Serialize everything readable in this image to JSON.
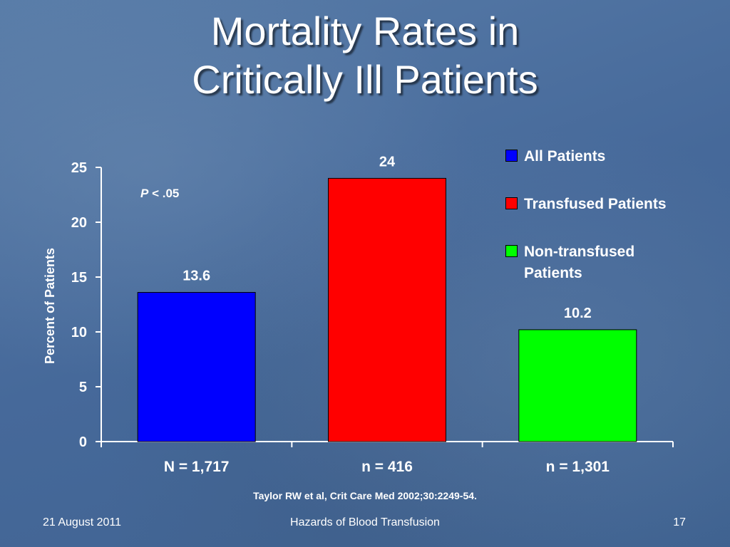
{
  "slide": {
    "title_line1": "Mortality Rates in",
    "title_line2": "Critically Ill Patients",
    "citation": "Taylor RW et al, Crit Care Med 2002;30:2249-54.",
    "footer_date": "21 August 2011",
    "footer_title": "Hazards of Blood Transfusion",
    "page_number": "17"
  },
  "chart_data": {
    "type": "bar",
    "title": "",
    "xlabel": "",
    "ylabel": "Percent of Patients",
    "ylim": [
      0,
      25
    ],
    "yticks": [
      0,
      5,
      10,
      15,
      20,
      25
    ],
    "categories": [
      "N = 1,717",
      "n = 416",
      "n = 1,301"
    ],
    "series": [
      {
        "name": "All Patients",
        "color": "#0000ff",
        "value": 13.6,
        "label": "13.6"
      },
      {
        "name": "Transfused Patients",
        "color": "#ff0000",
        "value": 24,
        "label": "24"
      },
      {
        "name": "Non-transfused Patients",
        "color": "#00ff00",
        "value": 10.2,
        "label": "10.2"
      }
    ],
    "annotation": {
      "italic": "P",
      "text": " < .05"
    },
    "grid": false,
    "legend_position": "top-right"
  }
}
